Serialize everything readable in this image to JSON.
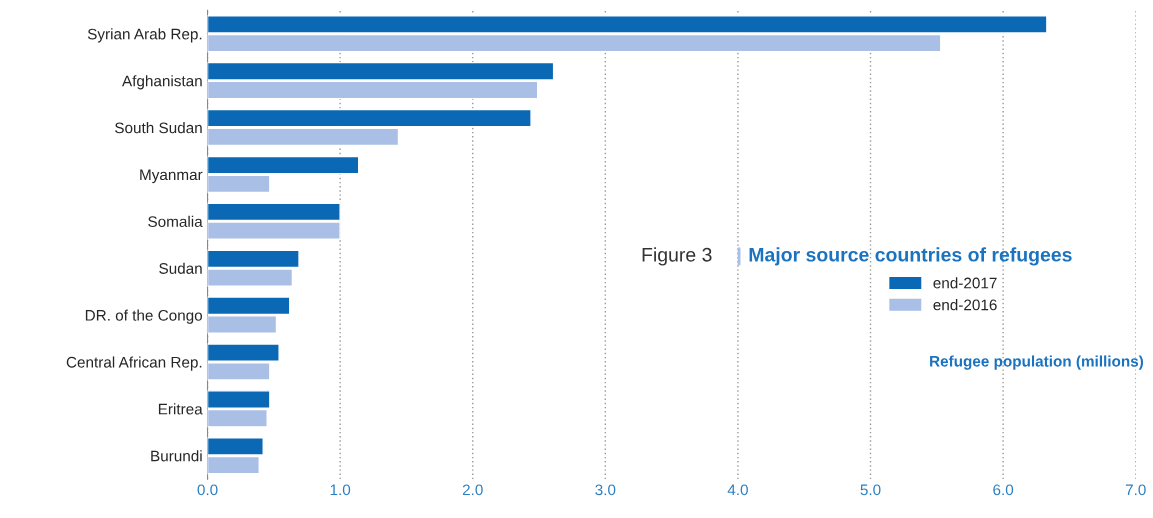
{
  "chart_data": {
    "type": "bar",
    "orientation": "horizontal",
    "title": "Figure 3",
    "subtitle": "Major source countries of refugees",
    "categories": [
      "Syrian Arab Rep.",
      "Afghanistan",
      "South Sudan",
      "Myanmar",
      "Somalia",
      "Sudan",
      "DR. of the Congo",
      "Central African Rep.",
      "Eritrea",
      "Burundi"
    ],
    "series": [
      {
        "name": "end-2017",
        "color": "#0a68b4",
        "values": [
          6.33,
          2.61,
          2.44,
          1.14,
          1.0,
          0.69,
          0.62,
          0.54,
          0.47,
          0.42
        ]
      },
      {
        "name": "end-2016",
        "color": "#a9bfe6",
        "values": [
          5.53,
          2.49,
          1.44,
          0.47,
          1.0,
          0.64,
          0.52,
          0.47,
          0.45,
          0.39
        ]
      }
    ],
    "xlim": [
      0,
      7.0
    ],
    "xticks": [
      {
        "value": 0,
        "label": "0.0"
      },
      {
        "value": 1,
        "label": "1.0"
      },
      {
        "value": 2,
        "label": "2.0"
      },
      {
        "value": 3,
        "label": "3.0"
      },
      {
        "value": 4,
        "label": "4.0"
      },
      {
        "value": 5,
        "label": "5.0"
      },
      {
        "value": 6,
        "label": "6.0"
      },
      {
        "value": 7,
        "label": "7.0"
      }
    ],
    "grid": "x",
    "legend": "right",
    "annotations": [
      "Refugee population (millions)"
    ]
  }
}
